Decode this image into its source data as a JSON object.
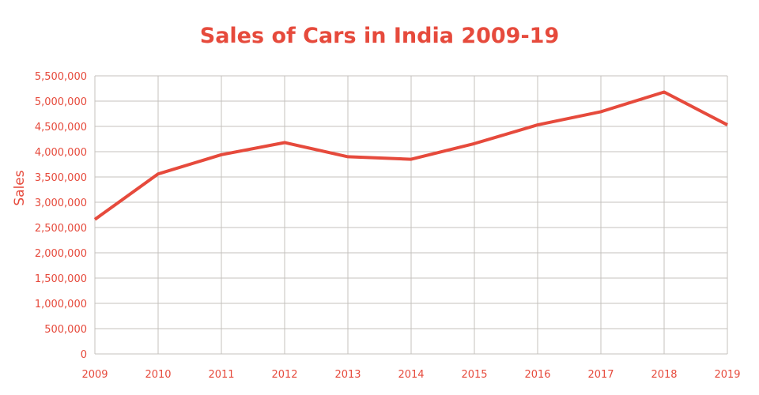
{
  "chart_data": {
    "type": "line",
    "title": "Sales of Cars in India 2009-19",
    "xlabel": "",
    "ylabel": "Sales",
    "categories": [
      "2009",
      "2010",
      "2011",
      "2012",
      "2013",
      "2014",
      "2015",
      "2016",
      "2017",
      "2018",
      "2019"
    ],
    "series": [
      {
        "name": "Sales",
        "values": [
          2660000,
          3560000,
          3940000,
          4180000,
          3900000,
          3850000,
          4160000,
          4530000,
          4790000,
          5180000,
          4530000
        ]
      }
    ],
    "ylim": [
      0,
      5500000
    ],
    "yticks": [
      0,
      500000,
      1000000,
      1500000,
      2000000,
      2500000,
      3000000,
      3500000,
      4000000,
      4500000,
      5000000,
      5500000
    ],
    "ytick_labels": [
      "0",
      "500,000",
      "1,000,000",
      "1,500,000",
      "2,000,000",
      "2,500,000",
      "3,000,000",
      "3,500,000",
      "4,000,000",
      "4,500,000",
      "5,000,000",
      "5,500,000"
    ],
    "grid": true,
    "legend": "none",
    "colors": {
      "line": "#e64a3c",
      "text": "#e64a3c",
      "grid": "#c4c2bd"
    }
  }
}
